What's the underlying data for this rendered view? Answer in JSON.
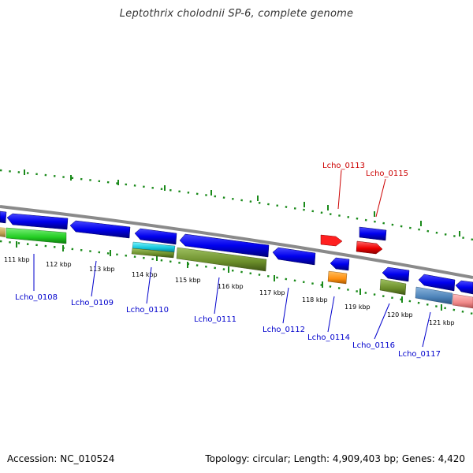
{
  "title": "Leptothrix cholodnii SP-6, complete genome",
  "footer": {
    "accession": "Accession: NC_010524",
    "summary": "Topology: circular; Length: 4,909,403 bp; Genes: 4,420"
  },
  "colors": {
    "backbone": "#8a8a8a",
    "tick": "#1a8a1a",
    "label_blue": "#0000cc",
    "label_red": "#cc0000"
  },
  "ticks": [
    {
      "label": "111 kbp"
    },
    {
      "label": "112 kbp"
    },
    {
      "label": "113 kbp"
    },
    {
      "label": "114 kbp"
    },
    {
      "label": "115 kbp"
    },
    {
      "label": "116 kbp"
    },
    {
      "label": "117 kbp"
    },
    {
      "label": "118 kbp"
    },
    {
      "label": "119 kbp"
    },
    {
      "label": "120 kbp"
    },
    {
      "label": "121 kbp"
    }
  ],
  "gene_labels": [
    {
      "name": "Lcho_0108",
      "color": "#0000cc"
    },
    {
      "name": "Lcho_0109",
      "color": "#0000cc"
    },
    {
      "name": "Lcho_0110",
      "color": "#0000cc"
    },
    {
      "name": "Lcho_0111",
      "color": "#0000cc"
    },
    {
      "name": "Lcho_0112",
      "color": "#0000cc"
    },
    {
      "name": "Lcho_0113",
      "color": "#cc0000"
    },
    {
      "name": "Lcho_0114",
      "color": "#0000cc"
    },
    {
      "name": "Lcho_0115",
      "color": "#cc0000"
    },
    {
      "name": "Lcho_0116",
      "color": "#0000cc"
    },
    {
      "name": "Lcho_0117",
      "color": "#0000cc"
    }
  ]
}
